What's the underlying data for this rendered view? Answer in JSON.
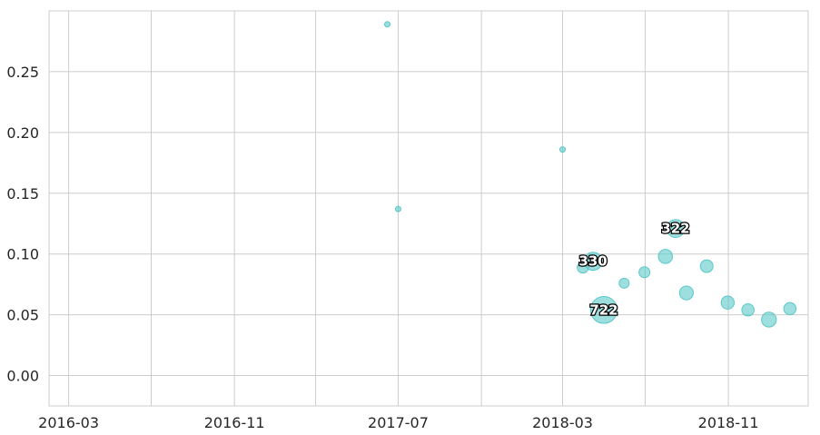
{
  "chart_data": {
    "type": "scatter",
    "title": "",
    "xlabel": "",
    "ylabel": "",
    "x_axis": "date",
    "xlim": [
      "2016-02-01",
      "2019-02-27"
    ],
    "ylim": [
      -0.025,
      0.3
    ],
    "x_ticks": [
      "2016-03",
      "2016-11",
      "2017-07",
      "2018-03",
      "2018-11"
    ],
    "y_ticks": [
      "0.00",
      "0.05",
      "0.10",
      "0.15",
      "0.20",
      "0.25"
    ],
    "grid": true,
    "marker_color": "#5bc8c8",
    "points": [
      {
        "x": "2017-06-15",
        "y": 0.289,
        "size": 3
      },
      {
        "x": "2017-07-01",
        "y": 0.137,
        "size": 2
      },
      {
        "x": "2018-03-01",
        "y": 0.186,
        "size": 30
      },
      {
        "x": "2018-03-31",
        "y": 0.089,
        "size": 130
      },
      {
        "x": "2018-04-15",
        "y": 0.094,
        "size": 330,
        "label": "330"
      },
      {
        "x": "2018-05-01",
        "y": 0.054,
        "size": 722,
        "label": "722"
      },
      {
        "x": "2018-05-31",
        "y": 0.076,
        "size": 100
      },
      {
        "x": "2018-06-30",
        "y": 0.085,
        "size": 120
      },
      {
        "x": "2018-07-31",
        "y": 0.098,
        "size": 200
      },
      {
        "x": "2018-08-15",
        "y": 0.121,
        "size": 322,
        "label": "322"
      },
      {
        "x": "2018-08-31",
        "y": 0.068,
        "size": 190
      },
      {
        "x": "2018-09-30",
        "y": 0.09,
        "size": 160
      },
      {
        "x": "2018-10-31",
        "y": 0.06,
        "size": 170
      },
      {
        "x": "2018-11-30",
        "y": 0.054,
        "size": 150
      },
      {
        "x": "2018-12-31",
        "y": 0.046,
        "size": 220
      },
      {
        "x": "2019-01-31",
        "y": 0.055,
        "size": 150
      }
    ]
  }
}
